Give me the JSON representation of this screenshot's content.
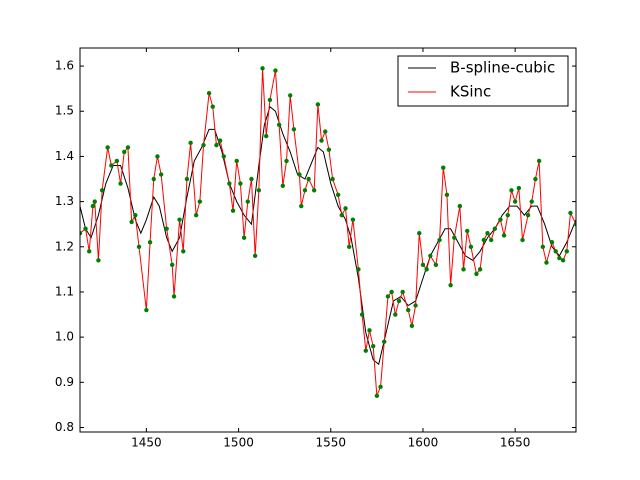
{
  "chart_data": {
    "type": "line",
    "xlim": [
      1414,
      1683
    ],
    "ylim": [
      0.79,
      1.64
    ],
    "xticks": [
      1450,
      1500,
      1550,
      1600,
      1650
    ],
    "yticks": [
      0.8,
      0.9,
      {
        "value": 1,
        "label": "1.0"
      },
      1.1,
      1.2,
      1.3,
      1.4,
      1.5,
      1.6
    ],
    "legend": "upper right",
    "series": [
      {
        "name": "B-spline-cubic",
        "color": "#000000",
        "x": [
          1414,
          1417,
          1420,
          1424,
          1428,
          1432,
          1436,
          1440,
          1444,
          1447,
          1450,
          1454,
          1457,
          1461,
          1464,
          1468,
          1472,
          1476,
          1480,
          1484,
          1487,
          1491,
          1495,
          1499,
          1503,
          1507,
          1511,
          1514,
          1517,
          1520,
          1524,
          1528,
          1532,
          1536,
          1540,
          1543,
          1546,
          1550,
          1554,
          1558,
          1561,
          1565,
          1569,
          1573,
          1576,
          1580,
          1584,
          1588,
          1592,
          1596,
          1600,
          1604,
          1608,
          1612,
          1615,
          1619,
          1623,
          1627,
          1631,
          1635,
          1639,
          1643,
          1647,
          1651,
          1655,
          1659,
          1662,
          1666,
          1670,
          1674,
          1678,
          1683
        ],
        "values": [
          1.29,
          1.24,
          1.22,
          1.27,
          1.34,
          1.38,
          1.38,
          1.33,
          1.26,
          1.23,
          1.26,
          1.31,
          1.29,
          1.22,
          1.19,
          1.22,
          1.31,
          1.39,
          1.42,
          1.46,
          1.46,
          1.41,
          1.34,
          1.3,
          1.27,
          1.25,
          1.38,
          1.47,
          1.51,
          1.5,
          1.45,
          1.41,
          1.36,
          1.35,
          1.39,
          1.42,
          1.41,
          1.34,
          1.29,
          1.26,
          1.22,
          1.13,
          1.01,
          0.95,
          0.94,
          1.01,
          1.08,
          1.09,
          1.07,
          1.08,
          1.13,
          1.18,
          1.21,
          1.24,
          1.24,
          1.21,
          1.18,
          1.17,
          1.19,
          1.22,
          1.24,
          1.27,
          1.29,
          1.29,
          1.27,
          1.29,
          1.29,
          1.25,
          1.2,
          1.18,
          1.21,
          1.26
        ]
      },
      {
        "name": "KSinc",
        "color": "#ff0000",
        "marker_color": "#008000",
        "x": [
          1414,
          1417,
          1419,
          1421,
          1422,
          1424,
          1426,
          1429,
          1431,
          1434,
          1436,
          1438,
          1440,
          1442,
          1444,
          1446,
          1450,
          1452,
          1454,
          1456,
          1458,
          1461,
          1464,
          1465,
          1468,
          1470,
          1472,
          1474,
          1477,
          1479,
          1481,
          1484,
          1486,
          1488,
          1490,
          1492,
          1495,
          1497,
          1499,
          1501,
          1503,
          1505,
          1507,
          1509,
          1511,
          1513,
          1515,
          1517,
          1520,
          1522,
          1524,
          1526,
          1528,
          1530,
          1533,
          1534,
          1536,
          1538,
          1541,
          1543,
          1545,
          1547,
          1549,
          1551,
          1554,
          1556,
          1558,
          1560,
          1562,
          1565,
          1567,
          1569,
          1571,
          1573,
          1575,
          1577,
          1579,
          1581,
          1583,
          1585,
          1587,
          1589,
          1592,
          1594,
          1596,
          1598,
          1600,
          1602,
          1604,
          1607,
          1609,
          1611,
          1613,
          1615,
          1617,
          1620,
          1622,
          1624,
          1626,
          1629,
          1631,
          1633,
          1635,
          1637,
          1639,
          1642,
          1644,
          1646,
          1648,
          1650,
          1652,
          1654,
          1657,
          1659,
          1661,
          1663,
          1665,
          1667,
          1670,
          1672,
          1674,
          1676,
          1678,
          1680,
          1683
        ],
        "values": [
          1.23,
          1.24,
          1.19,
          1.29,
          1.3,
          1.17,
          1.325,
          1.42,
          1.38,
          1.39,
          1.34,
          1.41,
          1.42,
          1.255,
          1.27,
          1.2,
          1.06,
          1.21,
          1.35,
          1.4,
          1.36,
          1.24,
          1.16,
          1.09,
          1.26,
          1.19,
          1.35,
          1.43,
          1.27,
          1.3,
          1.425,
          1.54,
          1.51,
          1.425,
          1.435,
          1.4,
          1.34,
          1.28,
          1.39,
          1.34,
          1.22,
          1.3,
          1.35,
          1.18,
          1.325,
          1.595,
          1.445,
          1.525,
          1.59,
          1.47,
          1.335,
          1.39,
          1.535,
          1.46,
          1.36,
          1.29,
          1.325,
          1.35,
          1.325,
          1.515,
          1.435,
          1.455,
          1.415,
          1.35,
          1.315,
          1.27,
          1.285,
          1.2,
          1.26,
          1.15,
          1.05,
          0.97,
          1.015,
          0.98,
          0.87,
          0.89,
          0.99,
          1.09,
          1.1,
          1.05,
          1.08,
          1.1,
          1.06,
          1.025,
          1.07,
          1.23,
          1.16,
          1.15,
          1.18,
          1.16,
          1.215,
          1.375,
          1.315,
          1.115,
          1.22,
          1.29,
          1.15,
          1.235,
          1.2,
          1.14,
          1.15,
          1.215,
          1.23,
          1.215,
          1.24,
          1.26,
          1.225,
          1.27,
          1.325,
          1.3,
          1.33,
          1.215,
          1.27,
          1.3,
          1.35,
          1.39,
          1.2,
          1.165,
          1.21,
          1.19,
          1.175,
          1.17,
          1.19,
          1.275,
          1.25
        ]
      }
    ]
  }
}
